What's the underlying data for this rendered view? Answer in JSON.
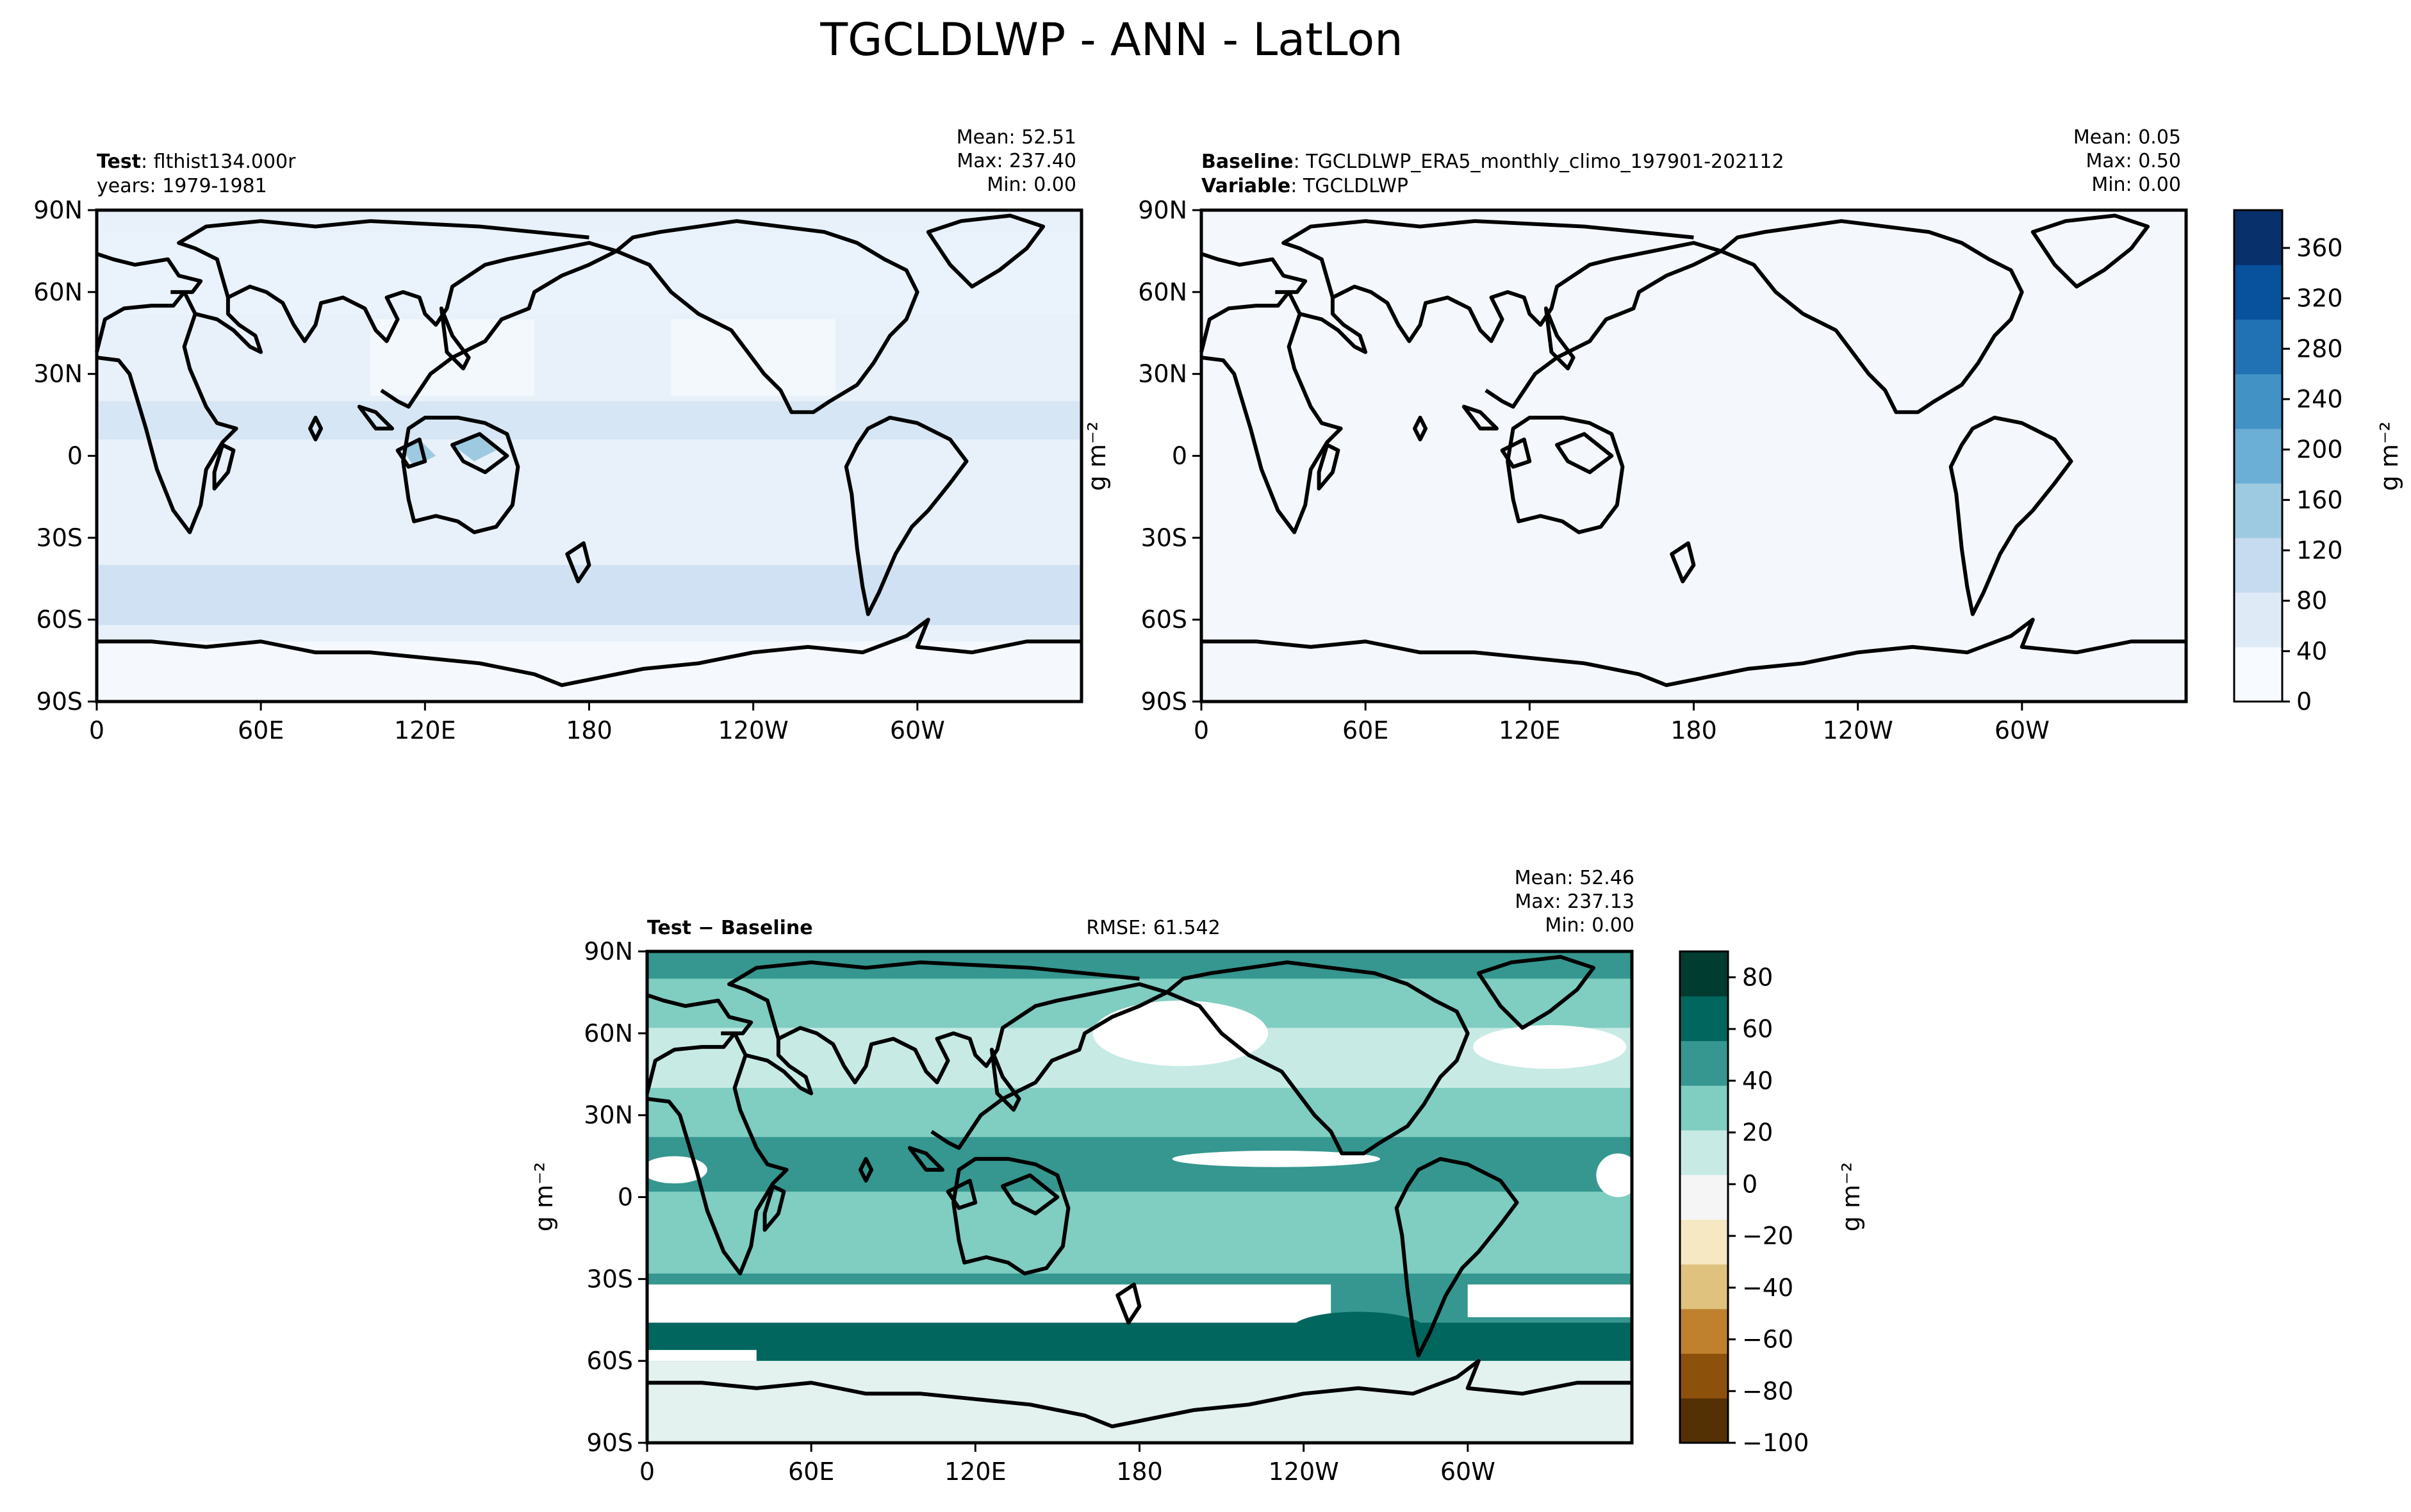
{
  "figure": {
    "suptitle": "TGCLDLWP - ANN - LatLon"
  },
  "panels": {
    "test": {
      "title_bold": "Test",
      "title_rest": ": flthist134.000r",
      "title_line2": "years: 1979-1981",
      "mean": "Mean: 52.51",
      "max": "Max: 237.40",
      "min": "Min:  0.00"
    },
    "baseline": {
      "title_bold": "Baseline",
      "title_rest": ": TGCLDLWP_ERA5_monthly_climo_197901-202112",
      "line2_bold": "Variable",
      "line2_rest": ": TGCLDLWP",
      "mean": "Mean:  0.05",
      "max": "Max:  0.50",
      "min": "Min:  0.00",
      "units": "g m⁻²"
    },
    "diff": {
      "title": "Test − Baseline",
      "rmse": "RMSE: 61.542",
      "mean": "Mean: 52.46",
      "max": "Max: 237.13",
      "min": "Min:  0.00",
      "units": "g m⁻²"
    }
  },
  "colorbars": {
    "abs": {
      "units": "g m⁻²",
      "ticks": [
        "0",
        "40",
        "80",
        "120",
        "160",
        "200",
        "240",
        "280",
        "320",
        "360"
      ],
      "colors": [
        "#f7fbff",
        "#deebf7",
        "#c6dbef",
        "#9ecae1",
        "#6baed6",
        "#4292c6",
        "#2171b5",
        "#08519c",
        "#08306b"
      ]
    },
    "diff": {
      "units": "g m⁻²",
      "ticks": [
        "−100",
        "−80",
        "−60",
        "−40",
        "−20",
        "0",
        "20",
        "40",
        "60",
        "80"
      ],
      "colors": [
        "#543005",
        "#8c510a",
        "#bf812d",
        "#dfc27d",
        "#f6e8c3",
        "#f5f5f5",
        "#c7eae5",
        "#80cdc1",
        "#35978f",
        "#01665e",
        "#003c30"
      ]
    }
  },
  "chart_data": [
    {
      "type": "heatmap",
      "title": "Test",
      "x_ticks": [
        "0",
        "60E",
        "120E",
        "180",
        "120W",
        "60W"
      ],
      "y_ticks": [
        "90N",
        "60N",
        "30N",
        "0",
        "30S",
        "60S",
        "90S"
      ],
      "colorbar_ticks": [
        0,
        40,
        80,
        120,
        160,
        200,
        240,
        280,
        320,
        360
      ],
      "stats": {
        "mean": 52.51,
        "max": 237.4,
        "min": 0.0
      }
    },
    {
      "type": "heatmap",
      "title": "Baseline",
      "x_ticks": [
        "0",
        "60E",
        "120E",
        "180",
        "120W",
        "60W"
      ],
      "y_ticks": [
        "90N",
        "60N",
        "30N",
        "0",
        "30S",
        "60S",
        "90S"
      ],
      "colorbar_ticks": [
        0,
        40,
        80,
        120,
        160,
        200,
        240,
        280,
        320,
        360
      ],
      "stats": {
        "mean": 0.05,
        "max": 0.5,
        "min": 0.0
      }
    },
    {
      "type": "heatmap",
      "title": "Test − Baseline",
      "x_ticks": [
        "0",
        "60E",
        "120E",
        "180",
        "120W",
        "60W"
      ],
      "y_ticks": [
        "90N",
        "60N",
        "30N",
        "0",
        "30S",
        "60S",
        "90S"
      ],
      "colorbar_ticks": [
        -100,
        -80,
        -60,
        -40,
        -20,
        0,
        20,
        40,
        60,
        80
      ],
      "stats": {
        "mean": 52.46,
        "max": 237.13,
        "min": 0.0,
        "rmse": 61.542
      }
    }
  ]
}
